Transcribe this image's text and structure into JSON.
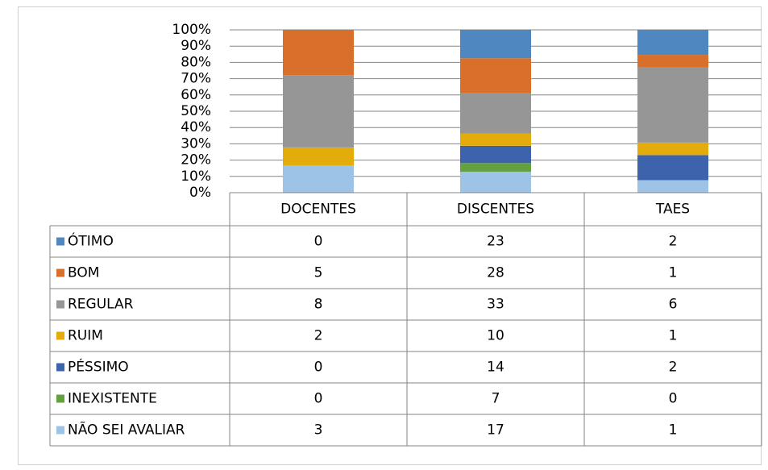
{
  "chart_data": {
    "type": "stacked_bar_100",
    "categories": [
      "DOCENTES",
      "DISCENTES",
      "TAES"
    ],
    "series": [
      {
        "name": "ÓTIMO",
        "color": "#4f87c0",
        "values": [
          0,
          23,
          2
        ]
      },
      {
        "name": "BOM",
        "color": "#d86f2a",
        "values": [
          5,
          28,
          1
        ]
      },
      {
        "name": "REGULAR",
        "color": "#969696",
        "values": [
          8,
          33,
          6
        ]
      },
      {
        "name": "RUIM",
        "color": "#e3ac0a",
        "values": [
          2,
          10,
          1
        ]
      },
      {
        "name": "PÉSSIMO",
        "color": "#3c63ac",
        "values": [
          0,
          14,
          2
        ]
      },
      {
        "name": "INEXISTENTE",
        "color": "#63a040",
        "values": [
          0,
          7,
          0
        ]
      },
      {
        "name": "NÃO SEI AVALIAR",
        "color": "#9dc3e6",
        "values": [
          3,
          17,
          1
        ]
      }
    ],
    "ylim": [
      0,
      100
    ],
    "yticks": [
      {
        "value": 0,
        "label": "0%"
      },
      {
        "value": 10,
        "label": "10%"
      },
      {
        "value": 20,
        "label": "20%"
      },
      {
        "value": 30,
        "label": "30%"
      },
      {
        "value": 40,
        "label": "40%"
      },
      {
        "value": 50,
        "label": "50%"
      },
      {
        "value": 60,
        "label": "60%"
      },
      {
        "value": 70,
        "label": "70%"
      },
      {
        "value": 80,
        "label": "80%"
      },
      {
        "value": 90,
        "label": "90%"
      },
      {
        "value": 100,
        "label": "100%"
      }
    ],
    "grid": true
  }
}
